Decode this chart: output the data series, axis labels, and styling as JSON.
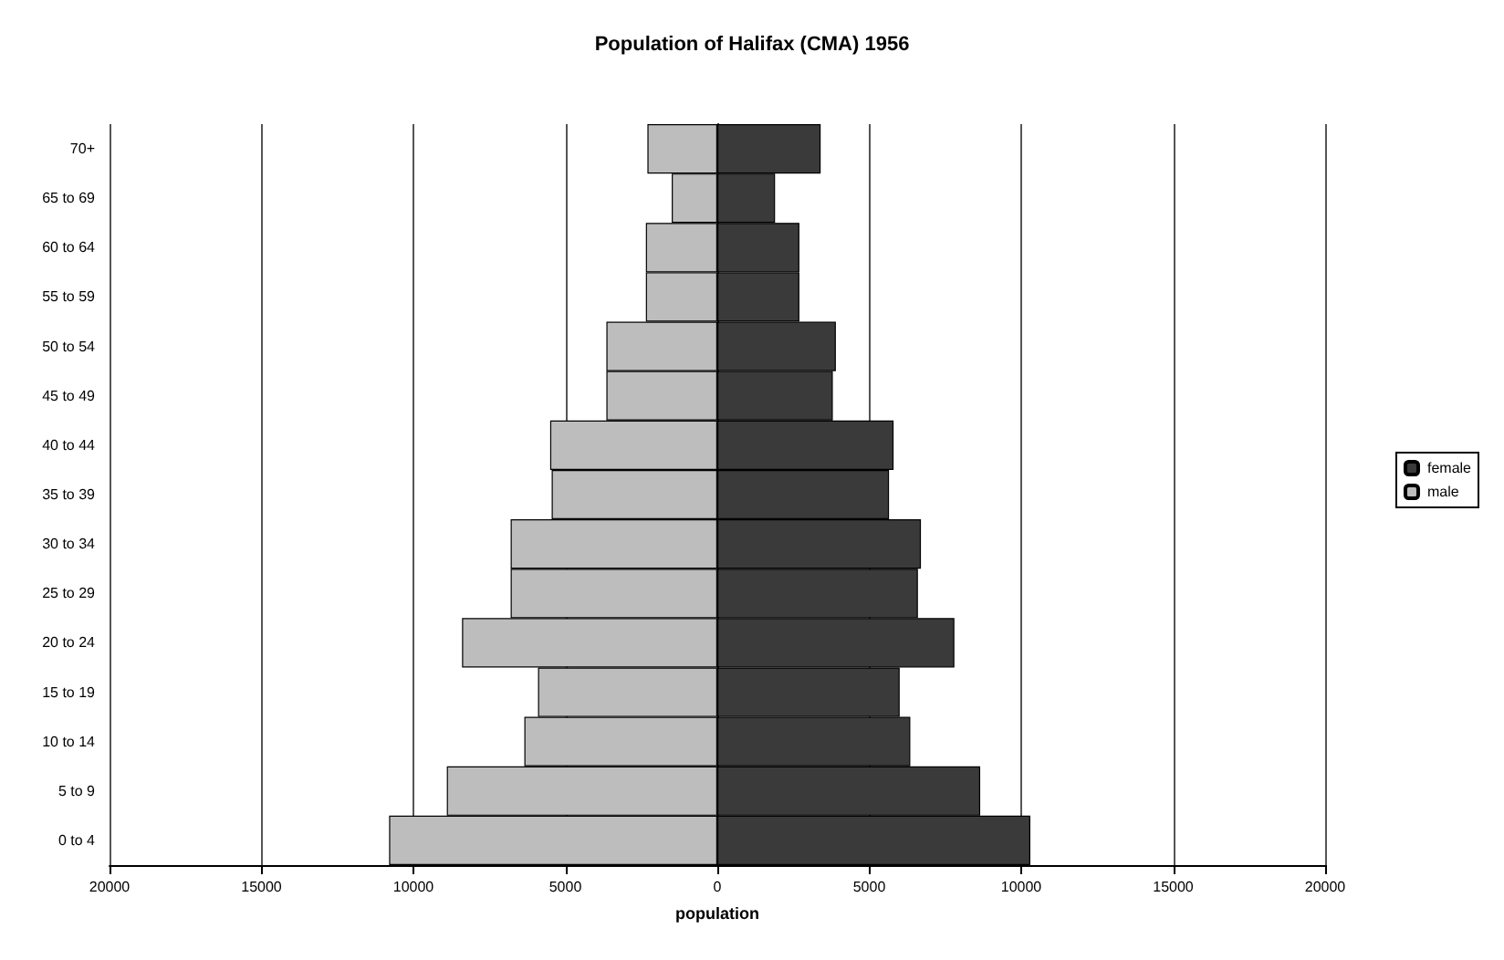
{
  "chart_data": {
    "type": "bar",
    "orientation": "horizontal",
    "stacked": true,
    "title": "Population of Halifax (CMA) 1956",
    "xlabel": "population",
    "categories": [
      "70+",
      "65 to 69",
      "60 to 64",
      "55 to 59",
      "50 to 54",
      "45 to 49",
      "40 to 44",
      "35 to 39",
      "30 to 34",
      "25 to 29",
      "20 to 24",
      "15 to 19",
      "10 to 14",
      "5 to 9",
      "0 to 4"
    ],
    "series": [
      {
        "name": "female",
        "color": "#3a3a3a",
        "values": [
          3400,
          1900,
          2700,
          2700,
          3900,
          3800,
          5800,
          5650,
          6700,
          6600,
          7800,
          6000,
          6350,
          8650,
          10300
        ]
      },
      {
        "name": "male",
        "color": "#bdbdbd",
        "values": [
          -2300,
          -1500,
          -2350,
          -2350,
          -3650,
          -3650,
          -5500,
          -5450,
          -6800,
          -6800,
          -8400,
          -5900,
          -6350,
          -8900,
          -10800
        ]
      }
    ],
    "xlim": [
      -20000,
      20000
    ],
    "xticks": [
      {
        "value": -20000,
        "label": "20000"
      },
      {
        "value": -15000,
        "label": "15000"
      },
      {
        "value": -10000,
        "label": "10000"
      },
      {
        "value": -5000,
        "label": "5000"
      },
      0,
      5000,
      10000,
      15000,
      20000
    ],
    "grid": "x",
    "legend": "right"
  }
}
